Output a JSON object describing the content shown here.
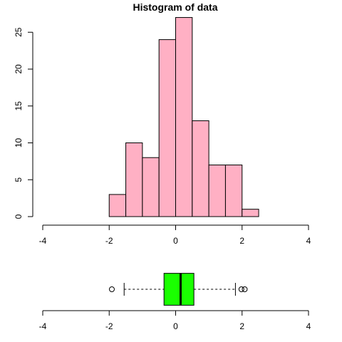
{
  "chart_data": [
    {
      "type": "bar",
      "title": "Histogram of data",
      "bins": [
        {
          "from": -2.0,
          "to": -1.5,
          "count": 3
        },
        {
          "from": -1.5,
          "to": -1.0,
          "count": 10
        },
        {
          "from": -1.0,
          "to": -0.5,
          "count": 8
        },
        {
          "from": -0.5,
          "to": 0.0,
          "count": 24
        },
        {
          "from": 0.0,
          "to": 0.5,
          "count": 27
        },
        {
          "from": 0.5,
          "to": 1.0,
          "count": 13
        },
        {
          "from": 1.0,
          "to": 1.5,
          "count": 7
        },
        {
          "from": 1.5,
          "to": 2.0,
          "count": 7
        },
        {
          "from": 2.0,
          "to": 2.5,
          "count": 1
        }
      ],
      "xlim": [
        -4,
        4
      ],
      "ylim": [
        0,
        27
      ],
      "x_ticks": [
        "-4",
        "-2",
        "0",
        "2",
        "4"
      ],
      "y_ticks": [
        "0",
        "5",
        "10",
        "15",
        "20",
        "25"
      ],
      "bar_color": "#ffb0c4",
      "grid": false
    },
    {
      "type": "boxplot",
      "orientation": "horizontal",
      "min": -1.55,
      "q1": -0.35,
      "median": 0.15,
      "q3": 0.55,
      "max": 1.8,
      "outliers": [
        -1.92,
        1.98,
        2.08
      ],
      "xlim": [
        -4,
        4
      ],
      "x_ticks": [
        "-4",
        "-2",
        "0",
        "2",
        "4"
      ],
      "box_color": "#1aff00"
    }
  ]
}
